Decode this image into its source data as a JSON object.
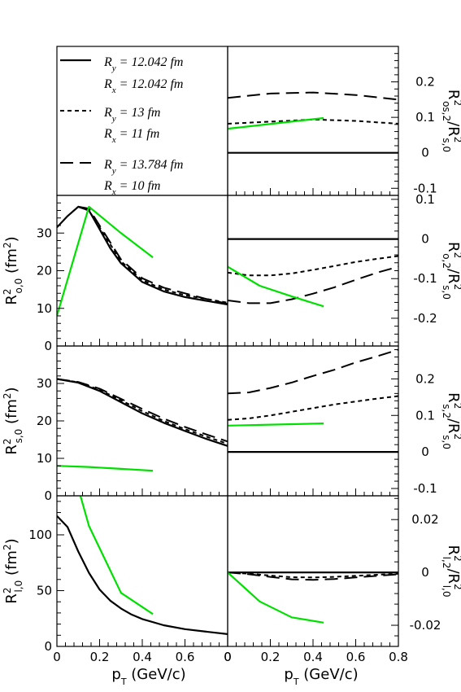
{
  "legend": {
    "entries": [
      {
        "ry": "R",
        "ry_sub": "y",
        "ry_val": " = 12.042 fm",
        "rx": "R",
        "rx_sub": "x",
        "rx_val": " = 12.042 fm",
        "style": "solid"
      },
      {
        "ry": "R",
        "ry_sub": "y",
        "ry_val": " = 13 fm",
        "rx": "R",
        "rx_sub": "x",
        "rx_val": " = 11 fm",
        "style": "short-dash"
      },
      {
        "ry": "R",
        "ry_sub": "y",
        "ry_val": " = 13.784 fm",
        "rx": "R",
        "rx_sub": "x",
        "rx_val": " = 10 fm",
        "style": "long-dash"
      }
    ]
  },
  "colors": {
    "model": "#000000",
    "green": "#00e000"
  },
  "xaxis_label": "p",
  "xaxis_sub": "T",
  "xaxis_unit": " (GeV/c)",
  "chart_data": [
    {
      "id": "os2",
      "type": "line",
      "ylabel": {
        "base": "R",
        "sup": "2",
        "sub": "os,2",
        "den": "R",
        "den_sup": "2",
        "den_sub": "s,0"
      },
      "xlim": [
        0,
        0.8
      ],
      "ylim": [
        -0.12,
        0.3
      ],
      "yticks": [
        -0.1,
        0,
        0.1,
        0.2
      ],
      "ytick_labels": [
        "-0.1",
        "0",
        "0.1",
        "0.2"
      ],
      "series": [
        {
          "style": "solid",
          "x": [
            0,
            0.8
          ],
          "y": [
            0,
            0
          ]
        },
        {
          "style": "short-dash",
          "x": [
            0,
            0.2,
            0.4,
            0.6,
            0.8
          ],
          "y": [
            0.082,
            0.088,
            0.094,
            0.09,
            0.082
          ]
        },
        {
          "style": "long-dash",
          "x": [
            0,
            0.2,
            0.4,
            0.6,
            0.8
          ],
          "y": [
            0.155,
            0.167,
            0.17,
            0.163,
            0.15
          ]
        },
        {
          "style": "green",
          "x": [
            0,
            0.45
          ],
          "y": [
            0.068,
            0.098
          ]
        }
      ]
    },
    {
      "id": "o0",
      "type": "line",
      "ylabel": {
        "base": "R",
        "sup": "2",
        "sub": "o,0",
        "unit": " (fm",
        "unit_sup": "2",
        "unit_end": ")"
      },
      "xlim": [
        0,
        0.8
      ],
      "ylim": [
        0,
        40
      ],
      "yticks": [
        0,
        10,
        20,
        30
      ],
      "ytick_labels": [
        "0",
        "10",
        "20",
        "30"
      ],
      "series": [
        {
          "style": "solid",
          "x": [
            0,
            0.05,
            0.1,
            0.15,
            0.2,
            0.25,
            0.3,
            0.4,
            0.5,
            0.6,
            0.7,
            0.8
          ],
          "y": [
            31.5,
            34.5,
            37,
            36,
            31,
            26,
            22,
            17,
            14.5,
            13,
            12,
            11
          ]
        },
        {
          "style": "short-dash",
          "x": [
            0.1,
            0.15,
            0.2,
            0.3,
            0.4,
            0.5,
            0.6,
            0.7,
            0.8
          ],
          "y": [
            37,
            36,
            31.5,
            22.5,
            17.5,
            15,
            13.5,
            12.5,
            11.5
          ]
        },
        {
          "style": "long-dash",
          "x": [
            0.1,
            0.15,
            0.2,
            0.3,
            0.4,
            0.5,
            0.6,
            0.7,
            0.8
          ],
          "y": [
            37,
            36.5,
            32,
            23,
            18,
            15.5,
            14,
            12.5,
            11.2
          ]
        },
        {
          "style": "green",
          "x": [
            0,
            0.15,
            0.3,
            0.45
          ],
          "y": [
            8,
            37,
            30,
            23.5
          ]
        }
      ]
    },
    {
      "id": "o2",
      "type": "line",
      "ylabel": {
        "base": "R",
        "sup": "2",
        "sub": "o,2",
        "den": "R",
        "den_sup": "2",
        "den_sub": "s,0"
      },
      "xlim": [
        0,
        0.8
      ],
      "ylim": [
        -0.27,
        0.11
      ],
      "yticks": [
        -0.2,
        -0.1,
        0,
        0.1
      ],
      "ytick_labels": [
        "-0.2",
        "-0.1",
        "0",
        "0.1"
      ],
      "series": [
        {
          "style": "solid",
          "x": [
            0,
            0.8
          ],
          "y": [
            0,
            0
          ]
        },
        {
          "style": "short-dash",
          "x": [
            0,
            0.1,
            0.2,
            0.3,
            0.4,
            0.5,
            0.6,
            0.7,
            0.8
          ],
          "y": [
            -0.085,
            -0.092,
            -0.092,
            -0.087,
            -0.078,
            -0.068,
            -0.058,
            -0.05,
            -0.043
          ]
        },
        {
          "style": "long-dash",
          "x": [
            0,
            0.1,
            0.2,
            0.3,
            0.4,
            0.5,
            0.6,
            0.7,
            0.8
          ],
          "y": [
            -0.155,
            -0.162,
            -0.162,
            -0.152,
            -0.138,
            -0.122,
            -0.103,
            -0.085,
            -0.07
          ]
        },
        {
          "style": "green",
          "x": [
            0,
            0.15,
            0.3,
            0.45
          ],
          "y": [
            -0.07,
            -0.118,
            -0.145,
            -0.17
          ]
        }
      ]
    },
    {
      "id": "s0",
      "type": "line",
      "ylabel": {
        "base": "R",
        "sup": "2",
        "sub": "s,0",
        "unit": " (fm",
        "unit_sup": "2",
        "unit_end": ")"
      },
      "xlim": [
        0,
        0.8
      ],
      "ylim": [
        0,
        40
      ],
      "yticks": [
        0,
        10,
        20,
        30
      ],
      "ytick_labels": [
        "0",
        "10",
        "20",
        "30"
      ],
      "series": [
        {
          "style": "solid",
          "x": [
            0,
            0.1,
            0.2,
            0.3,
            0.4,
            0.5,
            0.6,
            0.7,
            0.8
          ],
          "y": [
            31.2,
            30.2,
            28,
            25,
            22,
            19.5,
            17.3,
            15.2,
            13.3
          ]
        },
        {
          "style": "short-dash",
          "x": [
            0,
            0.1,
            0.2,
            0.3,
            0.4,
            0.5,
            0.6,
            0.7,
            0.8
          ],
          "y": [
            31.2,
            30.3,
            28.3,
            25.5,
            22.6,
            20,
            17.8,
            15.8,
            13.9
          ]
        },
        {
          "style": "long-dash",
          "x": [
            0,
            0.1,
            0.2,
            0.3,
            0.4,
            0.5,
            0.6,
            0.7,
            0.8
          ],
          "y": [
            31.2,
            30.4,
            28.6,
            25.9,
            23.2,
            20.6,
            18.4,
            16.4,
            14.5
          ]
        },
        {
          "style": "green",
          "x": [
            0,
            0.15,
            0.3,
            0.45
          ],
          "y": [
            8,
            7.7,
            7.2,
            6.7
          ]
        }
      ]
    },
    {
      "id": "s2",
      "type": "line",
      "ylabel": {
        "base": "R",
        "sup": "2",
        "sub": "s,2",
        "den": "R",
        "den_sup": "2",
        "den_sub": "s,0"
      },
      "xlim": [
        0,
        0.8
      ],
      "ylim": [
        -0.12,
        0.29
      ],
      "yticks": [
        -0.1,
        0,
        0.1,
        0.2
      ],
      "ytick_labels": [
        "-0.1",
        "0",
        "0.1",
        "0.2"
      ],
      "series": [
        {
          "style": "solid",
          "x": [
            0,
            0.8
          ],
          "y": [
            0,
            0
          ]
        },
        {
          "style": "short-dash",
          "x": [
            0,
            0.1,
            0.2,
            0.3,
            0.4,
            0.5,
            0.6,
            0.7,
            0.8
          ],
          "y": [
            0.088,
            0.092,
            0.1,
            0.11,
            0.12,
            0.13,
            0.138,
            0.146,
            0.153
          ]
        },
        {
          "style": "long-dash",
          "x": [
            0,
            0.1,
            0.2,
            0.3,
            0.4,
            0.5,
            0.6,
            0.7,
            0.8
          ],
          "y": [
            0.16,
            0.163,
            0.175,
            0.19,
            0.208,
            0.225,
            0.245,
            0.262,
            0.28
          ]
        },
        {
          "style": "green",
          "x": [
            0,
            0.45
          ],
          "y": [
            0.072,
            0.078
          ]
        }
      ]
    },
    {
      "id": "l0",
      "type": "line",
      "ylabel": {
        "base": "R",
        "sup": "2",
        "sub": "l,0",
        "unit": " (fm",
        "unit_sup": "2",
        "unit_end": ")"
      },
      "xlim": [
        0,
        0.8
      ],
      "ylim": [
        0,
        135
      ],
      "yticks": [
        0,
        50,
        100
      ],
      "ytick_labels": [
        "0",
        "50",
        "100"
      ],
      "xticks": [
        0,
        0.2,
        0.4,
        0.6,
        0.8
      ],
      "xtick_labels": [
        "0",
        "0.2",
        "0.4",
        "0.6",
        "0"
      ],
      "series": [
        {
          "style": "solid",
          "x": [
            0,
            0.05,
            0.1,
            0.15,
            0.2,
            0.25,
            0.3,
            0.35,
            0.4,
            0.5,
            0.6,
            0.7,
            0.8
          ],
          "y": [
            117,
            107,
            85,
            66,
            51,
            41,
            34,
            28.5,
            24.5,
            19,
            15.5,
            13.2,
            11
          ]
        },
        {
          "style": "green",
          "x": [
            0.11,
            0.15,
            0.3,
            0.45
          ],
          "y": [
            135,
            108,
            48,
            29
          ]
        }
      ]
    },
    {
      "id": "l2",
      "type": "line",
      "ylabel": {
        "base": "R",
        "sup": "2",
        "sub": "l,2",
        "den": "R",
        "den_sup": "2",
        "den_sub": "l,0"
      },
      "xlim": [
        0,
        0.8
      ],
      "ylim": [
        -0.028,
        0.029
      ],
      "yticks": [
        -0.02,
        0,
        0.02
      ],
      "ytick_labels": [
        "-0.02",
        "0",
        "0.02"
      ],
      "xticks": [
        0,
        0.2,
        0.4,
        0.6,
        0.8
      ],
      "xtick_labels": [
        "0",
        "0.2",
        "0.4",
        "0.6",
        "0.8"
      ],
      "series": [
        {
          "style": "solid",
          "x": [
            0,
            0.8
          ],
          "y": [
            0,
            0
          ]
        },
        {
          "style": "short-dash",
          "x": [
            0,
            0.1,
            0.2,
            0.3,
            0.4,
            0.5,
            0.6,
            0.7,
            0.8
          ],
          "y": [
            0,
            -0.0005,
            -0.0012,
            -0.0018,
            -0.0019,
            -0.0017,
            -0.0013,
            -0.0009,
            -0.0005
          ]
        },
        {
          "style": "long-dash",
          "x": [
            0,
            0.1,
            0.2,
            0.3,
            0.4,
            0.5,
            0.6,
            0.7,
            0.8
          ],
          "y": [
            0,
            -0.0007,
            -0.0017,
            -0.0026,
            -0.0028,
            -0.0025,
            -0.0019,
            -0.0013,
            -0.0007
          ]
        },
        {
          "style": "green",
          "x": [
            0,
            0.15,
            0.3,
            0.45
          ],
          "y": [
            0,
            -0.011,
            -0.017,
            -0.019
          ]
        }
      ]
    }
  ]
}
